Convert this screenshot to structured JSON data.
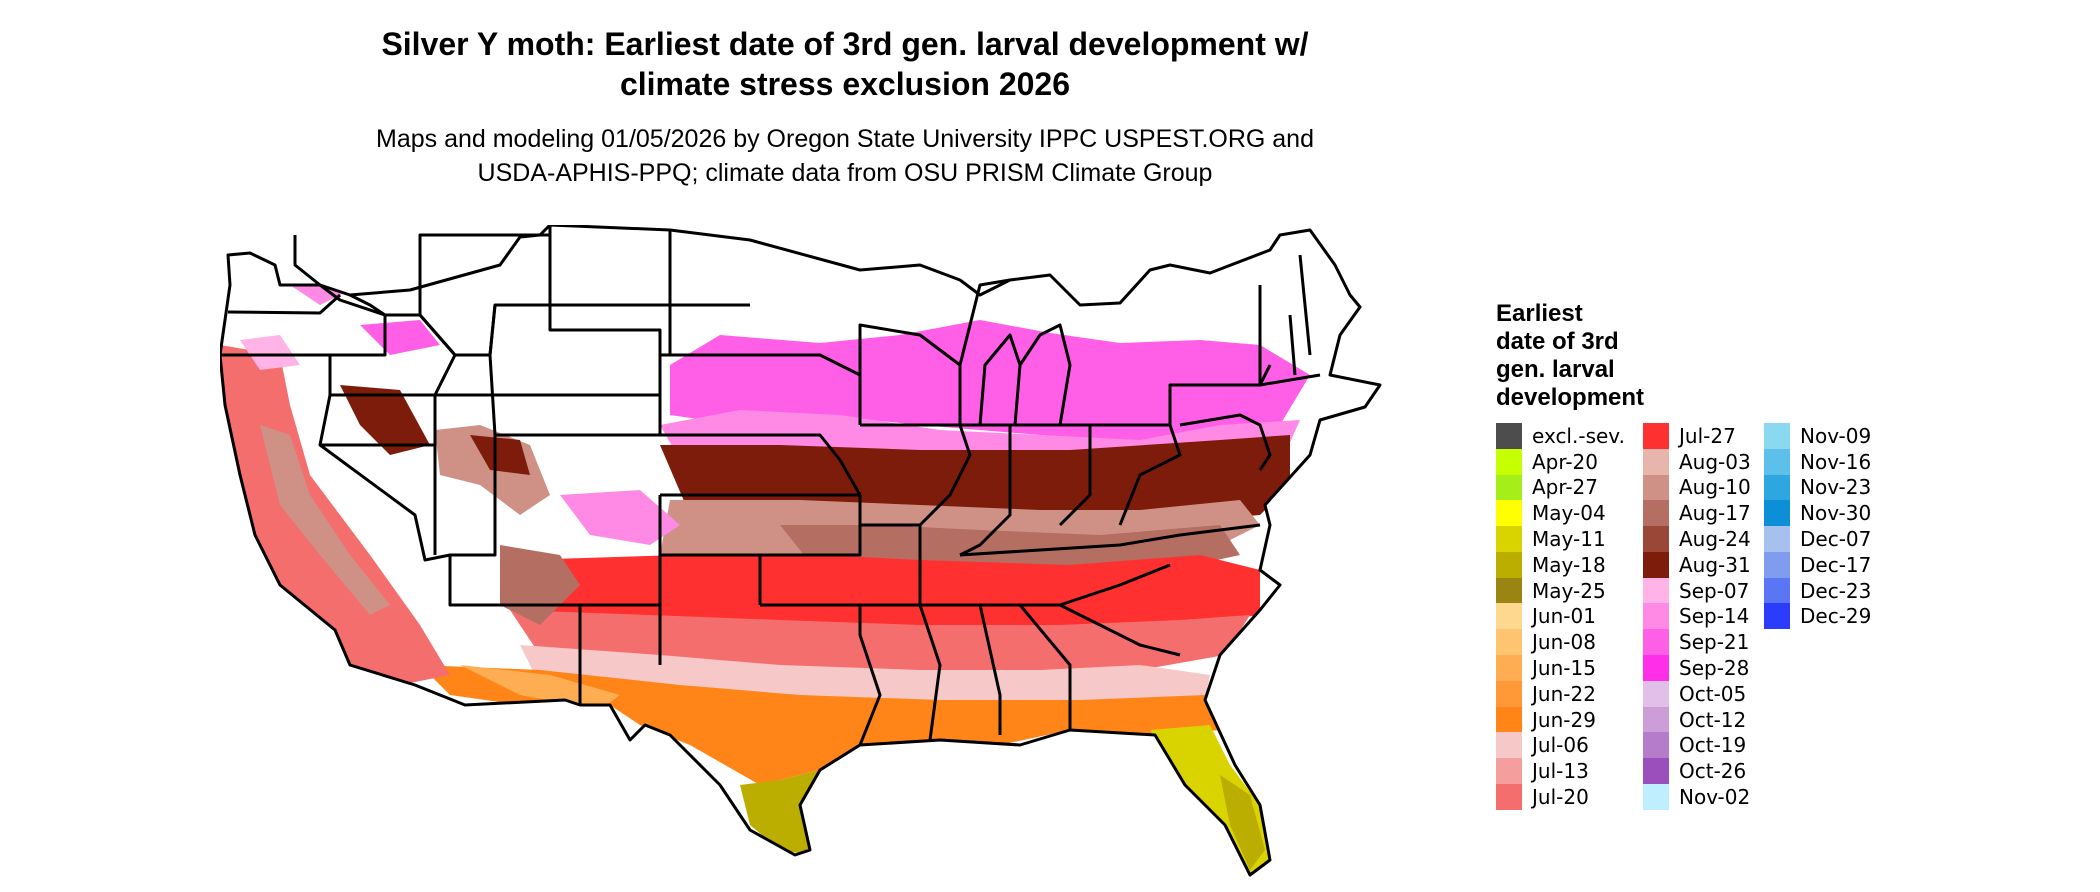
{
  "title": "Silver Y moth: Earliest date of 3rd gen. larval development w/\nclimate stress exclusion 2026",
  "subtitle": "Maps and modeling 01/05/2026 by Oregon State University IPPC USPEST.ORG and\nUSDA-APHIS-PPQ; climate data from OSU PRISM Climate Group",
  "legend": {
    "title": "Earliest\ndate of 3rd\ngen. larval\ndevelopment",
    "columns": [
      [
        {
          "label": "excl.-sev.",
          "color": "#4d4d4d"
        },
        {
          "label": "Apr-20",
          "color": "#c6ff00"
        },
        {
          "label": "Apr-27",
          "color": "#a6ee1a"
        },
        {
          "label": "May-04",
          "color": "#ffff00"
        },
        {
          "label": "May-11",
          "color": "#d9d400"
        },
        {
          "label": "May-18",
          "color": "#bcae00"
        },
        {
          "label": "May-25",
          "color": "#9a8412"
        },
        {
          "label": "Jun-01",
          "color": "#ffd890"
        },
        {
          "label": "Jun-08",
          "color": "#ffc470"
        },
        {
          "label": "Jun-15",
          "color": "#ffad52"
        },
        {
          "label": "Jun-22",
          "color": "#ff9938"
        },
        {
          "label": "Jun-29",
          "color": "#ff8518"
        },
        {
          "label": "Jul-06",
          "color": "#f7c8c8"
        },
        {
          "label": "Jul-13",
          "color": "#f59e9e"
        },
        {
          "label": "Jul-20",
          "color": "#f56e6e"
        }
      ],
      [
        {
          "label": "Jul-27",
          "color": "#ff3030"
        },
        {
          "label": "Aug-03",
          "color": "#e8b5ac"
        },
        {
          "label": "Aug-10",
          "color": "#cf9186"
        },
        {
          "label": "Aug-17",
          "color": "#b46e62"
        },
        {
          "label": "Aug-24",
          "color": "#9a4738"
        },
        {
          "label": "Aug-31",
          "color": "#7e1c0c"
        },
        {
          "label": "Sep-07",
          "color": "#ffb3e6"
        },
        {
          "label": "Sep-14",
          "color": "#ff8ae5"
        },
        {
          "label": "Sep-21",
          "color": "#ff5ee6"
        },
        {
          "label": "Sep-28",
          "color": "#ff2ee8"
        },
        {
          "label": "Oct-05",
          "color": "#e0c0e8"
        },
        {
          "label": "Oct-12",
          "color": "#cc9ed8"
        },
        {
          "label": "Oct-19",
          "color": "#b57ccb"
        },
        {
          "label": "Oct-26",
          "color": "#9a4fbd"
        },
        {
          "label": "Nov-02",
          "color": "#bfeeff"
        }
      ],
      [
        {
          "label": "Nov-09",
          "color": "#8bd9f0"
        },
        {
          "label": "Nov-16",
          "color": "#5cc0ea"
        },
        {
          "label": "Nov-23",
          "color": "#2ea6e0"
        },
        {
          "label": "Nov-30",
          "color": "#0c8fd6"
        },
        {
          "label": "Dec-07",
          "color": "#a6c1ed"
        },
        {
          "label": "Dec-17",
          "color": "#7f9cef"
        },
        {
          "label": "Dec-23",
          "color": "#5a76f4"
        },
        {
          "label": "Dec-29",
          "color": "#2b3cfc"
        }
      ]
    ]
  }
}
